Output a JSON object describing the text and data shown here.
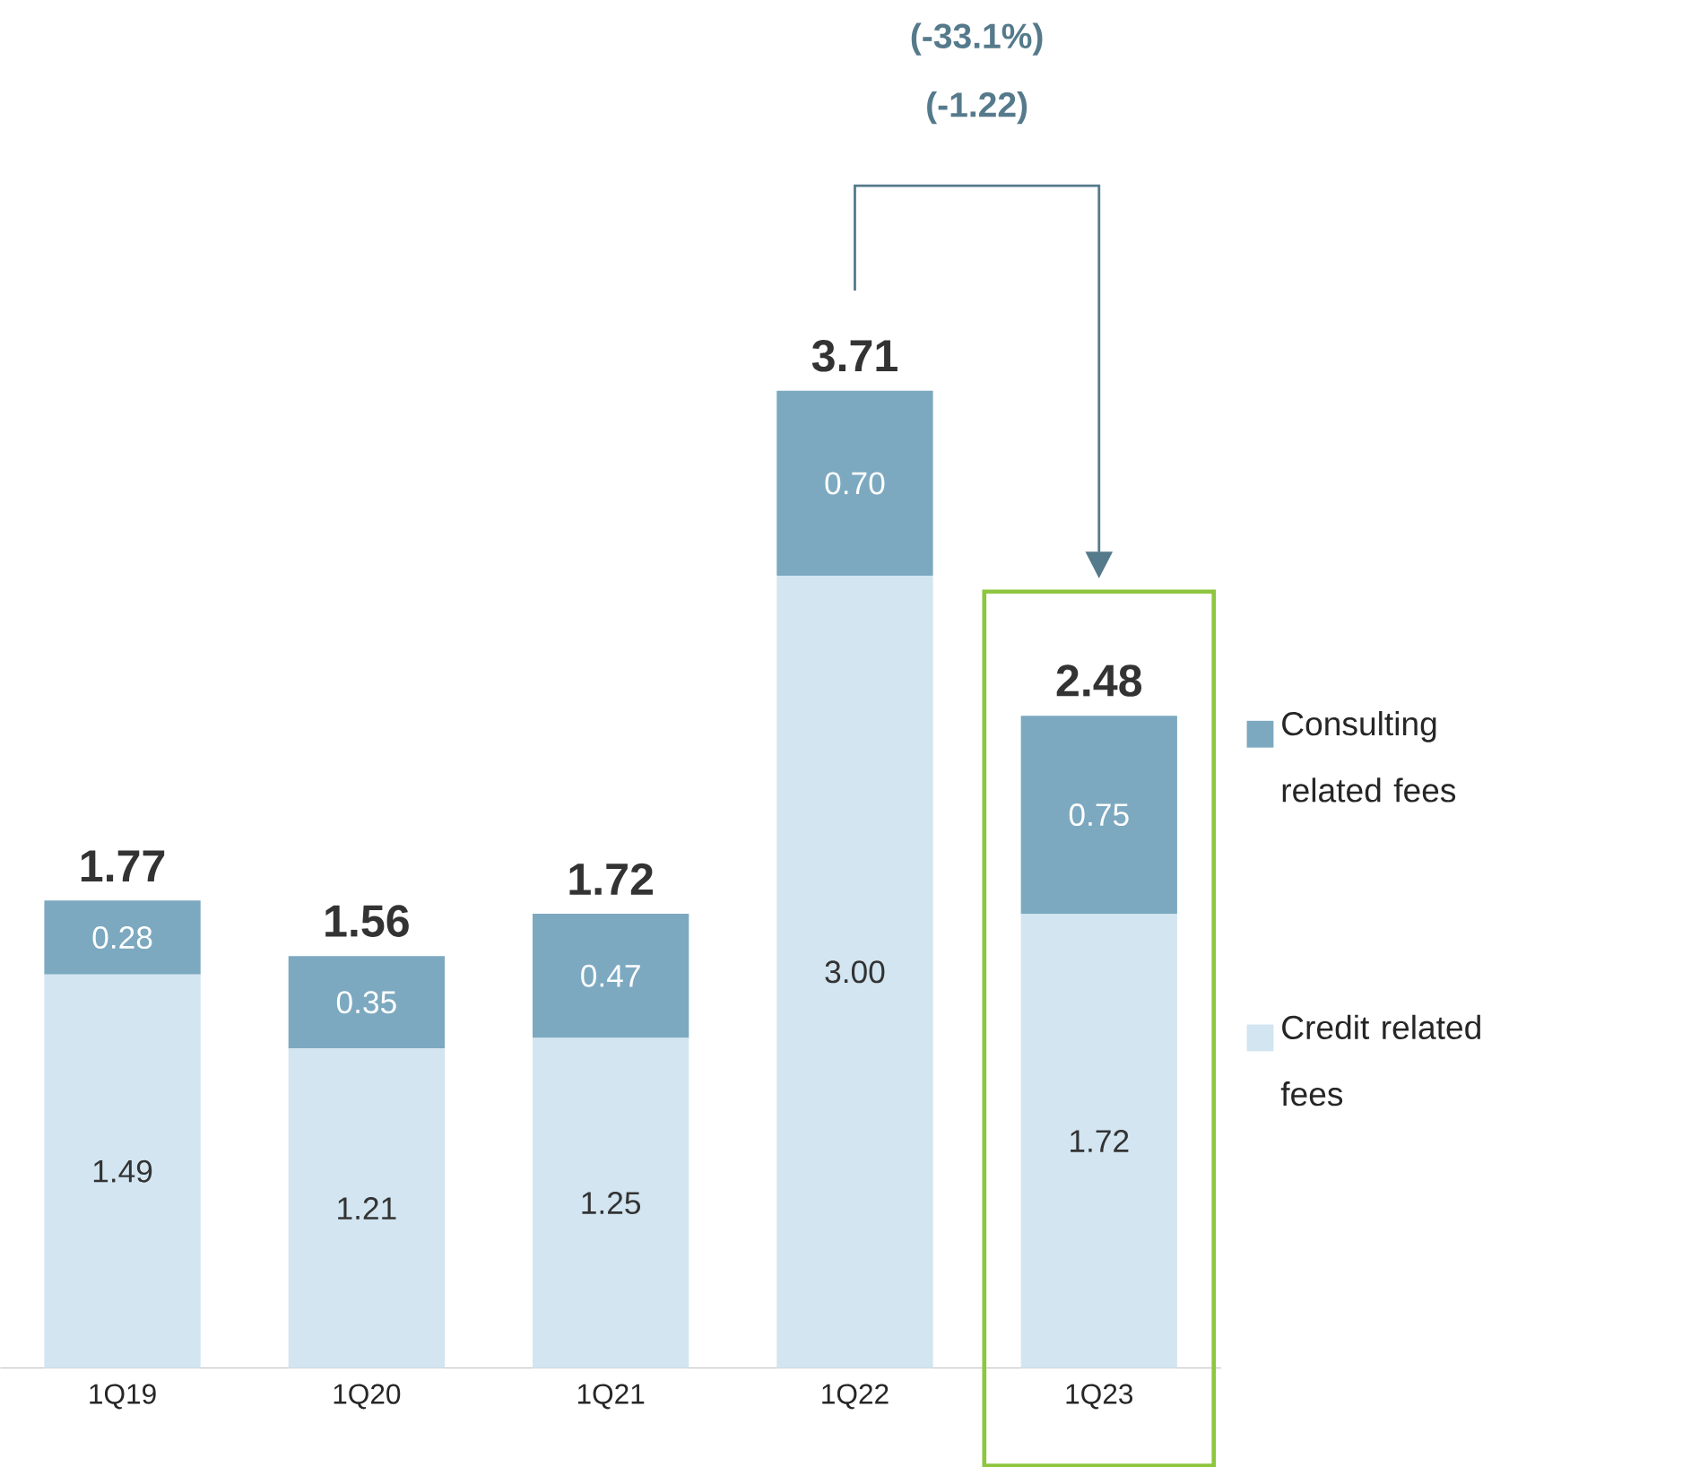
{
  "chart_data": {
    "type": "bar",
    "stacked": true,
    "categories": [
      "1Q19",
      "1Q20",
      "1Q21",
      "1Q22",
      "1Q23"
    ],
    "series": [
      {
        "name": "Credit related fees",
        "color": "#d2e5f1",
        "values": [
          1.49,
          1.21,
          1.25,
          3.0,
          1.72
        ],
        "value_labels": [
          "1.49",
          "1.21",
          "1.25",
          "3.00",
          "1.72"
        ]
      },
      {
        "name": "Consulting related fees",
        "color": "#7ca9c0",
        "values": [
          0.28,
          0.35,
          0.47,
          0.7,
          0.75
        ],
        "value_labels": [
          "0.28",
          "0.35",
          "0.47",
          "0.70",
          "0.75"
        ]
      }
    ],
    "totals": [
      "1.77",
      "1.56",
      "1.72",
      "3.71",
      "2.48"
    ],
    "annotations": [
      "(-33.1%)",
      "(-1.22)"
    ],
    "legend": "right"
  }
}
